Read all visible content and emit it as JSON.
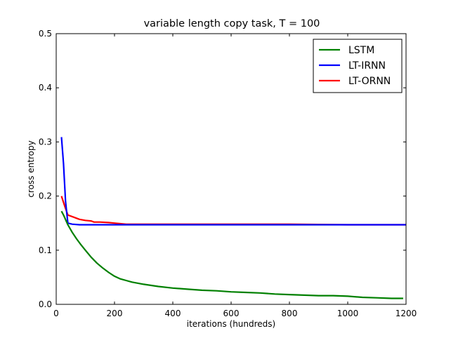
{
  "chart_data": {
    "type": "line",
    "title": "variable length copy task, T = 100",
    "xlabel": "iterations (hundreds)",
    "ylabel": "cross entropy",
    "xlim": [
      0,
      1200
    ],
    "ylim": [
      0.0,
      0.5
    ],
    "xticks": [
      "0",
      "200",
      "400",
      "600",
      "800",
      "1000",
      "1200"
    ],
    "yticks": [
      "0.0",
      "0.1",
      "0.2",
      "0.3",
      "0.4",
      "0.5"
    ],
    "grid": false,
    "legend_position": "top-right",
    "series": [
      {
        "name": "LSTM",
        "color": "#008000",
        "x": [
          18,
          25,
          40,
          55,
          70,
          85,
          100,
          120,
          140,
          160,
          180,
          200,
          220,
          240,
          260,
          300,
          350,
          400,
          450,
          500,
          550,
          600,
          650,
          700,
          750,
          800,
          850,
          900,
          950,
          1000,
          1050,
          1100,
          1150,
          1190
        ],
        "y": [
          0.172,
          0.165,
          0.147,
          0.133,
          0.121,
          0.11,
          0.1,
          0.087,
          0.076,
          0.067,
          0.059,
          0.052,
          0.047,
          0.044,
          0.041,
          0.037,
          0.033,
          0.03,
          0.028,
          0.026,
          0.025,
          0.023,
          0.022,
          0.021,
          0.019,
          0.018,
          0.017,
          0.016,
          0.016,
          0.015,
          0.013,
          0.012,
          0.011,
          0.011
        ]
      },
      {
        "name": "LT-IRNN",
        "color": "#0000ff",
        "x": [
          18,
          25,
          32,
          40,
          55,
          80,
          120,
          200,
          300,
          400,
          600,
          800,
          1000,
          1200
        ],
        "y": [
          0.309,
          0.26,
          0.19,
          0.15,
          0.148,
          0.147,
          0.147,
          0.147,
          0.147,
          0.147,
          0.147,
          0.147,
          0.147,
          0.147
        ]
      },
      {
        "name": "LT-ORNN",
        "color": "#ff0000",
        "x": [
          18,
          30,
          40,
          60,
          80,
          100,
          120,
          130,
          150,
          180,
          200,
          220,
          240,
          300,
          400,
          600,
          800,
          1000,
          1200
        ],
        "y": [
          0.2,
          0.18,
          0.165,
          0.161,
          0.157,
          0.155,
          0.154,
          0.152,
          0.152,
          0.151,
          0.15,
          0.149,
          0.148,
          0.148,
          0.148,
          0.148,
          0.148,
          0.147,
          0.147
        ]
      }
    ]
  }
}
